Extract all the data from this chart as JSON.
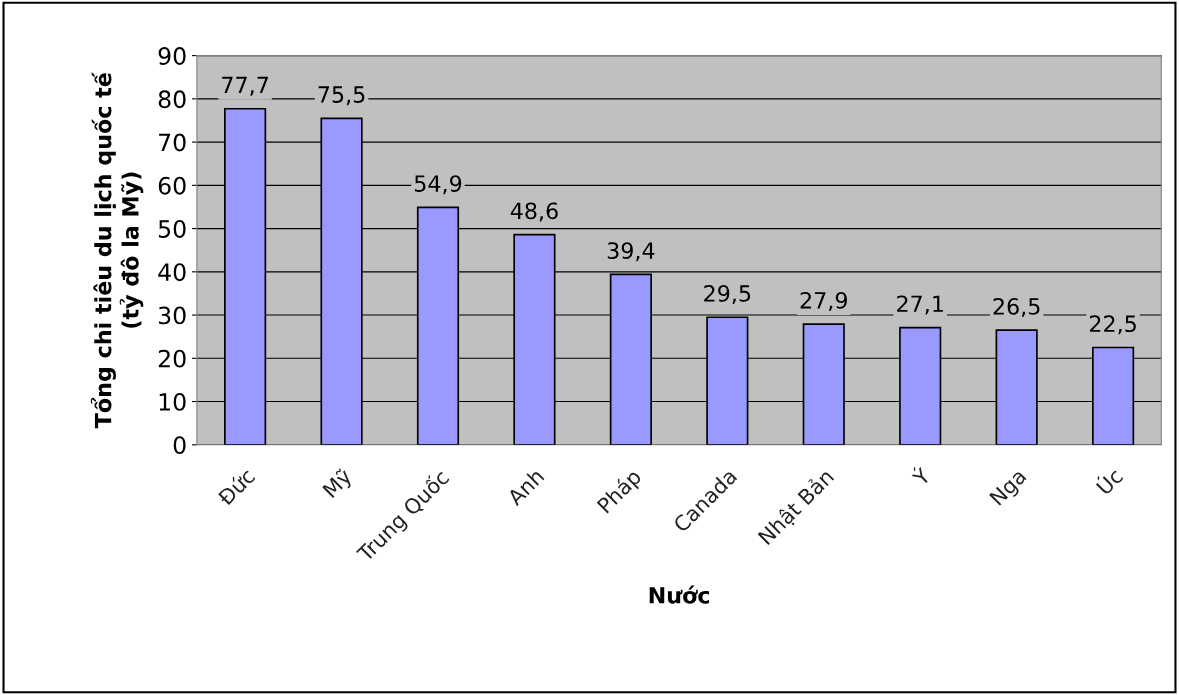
{
  "chart_data": {
    "type": "bar",
    "xlabel": "Nước",
    "ylabel": "Tổng chi tiêu du lịch quốc tế\n(tỷ đô la Mỹ)",
    "categories": [
      "Đức",
      "Mỹ",
      "Trung Quốc",
      "Anh",
      "Pháp",
      "Canada",
      "Nhật Bản",
      "Ý",
      "Nga",
      "Úc"
    ],
    "values": [
      77.7,
      75.5,
      54.9,
      48.6,
      39.4,
      29.5,
      27.9,
      27.1,
      26.5,
      22.5
    ],
    "value_labels": [
      "77,7",
      "75,5",
      "54,9",
      "48,6",
      "39,4",
      "29,5",
      "27,9",
      "27,1",
      "26,5",
      "22,5"
    ],
    "color": "#9999ff",
    "ylim": [
      0,
      90
    ],
    "yticks": [
      0,
      10,
      20,
      30,
      40,
      50,
      60,
      70,
      80,
      90
    ],
    "grid": "y",
    "legend": false
  }
}
